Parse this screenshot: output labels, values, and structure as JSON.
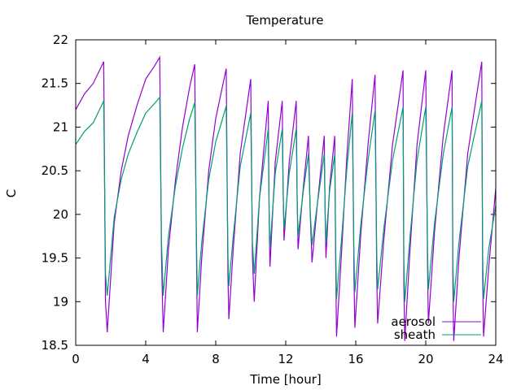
{
  "chart_data": {
    "type": "line",
    "title": "Temperature",
    "xlabel": "Time [hour]",
    "ylabel": "C",
    "xlim": [
      0,
      24
    ],
    "ylim": [
      18.5,
      22
    ],
    "xticks": [
      0,
      4,
      8,
      12,
      16,
      20,
      24
    ],
    "xtick_labels": [
      "0",
      "4",
      "8",
      "12",
      "16",
      "20",
      "24"
    ],
    "yticks": [
      18.5,
      19,
      19.5,
      20,
      20.5,
      21,
      21.5,
      22
    ],
    "ytick_labels": [
      "18.5",
      "19",
      "19.5",
      "20",
      "20.5",
      "21",
      "21.5",
      "22"
    ],
    "grid": false,
    "legend_position": "bottom-right",
    "x": [
      0,
      0.5,
      1.0,
      1.6,
      1.7,
      1.8,
      2.2,
      2.6,
      3.0,
      3.5,
      4.0,
      4.5,
      4.8,
      4.9,
      5.0,
      5.3,
      5.7,
      6.1,
      6.5,
      6.8,
      6.9,
      6.95,
      7.2,
      7.6,
      8.0,
      8.6,
      8.7,
      8.75,
      9.0,
      9.4,
      10.0,
      10.1,
      10.2,
      10.5,
      11.0,
      11.05,
      11.1,
      11.4,
      11.8,
      11.85,
      11.9,
      12.2,
      12.6,
      12.65,
      12.7,
      13.0,
      13.3,
      13.4,
      13.5,
      13.8,
      14.2,
      14.25,
      14.3,
      14.5,
      14.8,
      14.85,
      14.9,
      15.2,
      15.5,
      15.8,
      15.9,
      15.95,
      16.3,
      16.7,
      17.1,
      17.2,
      17.25,
      17.6,
      18.1,
      18.7,
      18.75,
      18.8,
      19.1,
      19.5,
      20.0,
      20.1,
      20.15,
      20.5,
      21.0,
      21.5,
      21.55,
      21.6,
      21.9,
      22.4,
      23.2,
      23.25,
      23.3,
      23.6,
      24
    ],
    "series": [
      {
        "name": "aerosol",
        "color": "#9400d3",
        "values": [
          21.2,
          21.38,
          21.5,
          21.75,
          19.0,
          18.65,
          19.9,
          20.5,
          20.9,
          21.25,
          21.55,
          21.7,
          21.8,
          19.5,
          18.65,
          19.6,
          20.4,
          21.0,
          21.45,
          21.72,
          19.5,
          18.65,
          19.5,
          20.5,
          21.1,
          21.67,
          19.3,
          18.8,
          19.6,
          20.7,
          21.55,
          19.5,
          19.0,
          20.2,
          21.3,
          20.0,
          19.4,
          20.6,
          21.3,
          20.3,
          19.7,
          20.6,
          21.3,
          20.2,
          19.6,
          20.3,
          20.9,
          20.0,
          19.45,
          20.1,
          20.9,
          20.0,
          19.5,
          20.3,
          20.9,
          19.5,
          18.6,
          19.6,
          20.7,
          21.55,
          19.3,
          18.7,
          19.8,
          20.8,
          21.6,
          19.3,
          18.75,
          19.7,
          20.8,
          21.65,
          19.2,
          18.55,
          19.6,
          20.8,
          21.65,
          19.4,
          18.75,
          19.8,
          20.9,
          21.65,
          19.2,
          18.55,
          19.5,
          20.7,
          21.75,
          19.3,
          18.6,
          19.4,
          20.3
        ]
      },
      {
        "name": "sheath",
        "color": "#009e73",
        "values": [
          20.8,
          20.95,
          21.05,
          21.3,
          19.32,
          19.07,
          19.97,
          20.4,
          20.69,
          20.94,
          21.16,
          21.27,
          21.34,
          19.68,
          19.07,
          19.75,
          20.33,
          20.76,
          21.09,
          21.28,
          19.68,
          19.07,
          19.68,
          20.4,
          20.83,
          21.24,
          19.54,
          19.18,
          19.75,
          20.55,
          21.16,
          19.68,
          19.32,
          20.19,
          20.98,
          20.04,
          19.61,
          20.47,
          20.98,
          20.26,
          19.83,
          20.47,
          20.98,
          20.19,
          19.75,
          20.26,
          20.69,
          20.04,
          19.65,
          20.11,
          20.69,
          20.04,
          19.68,
          20.26,
          20.69,
          19.68,
          19.03,
          19.75,
          20.55,
          21.16,
          19.54,
          19.11,
          19.9,
          20.62,
          21.19,
          19.54,
          19.14,
          19.83,
          20.62,
          21.23,
          19.47,
          19.0,
          19.75,
          20.62,
          21.23,
          19.61,
          19.14,
          19.9,
          20.69,
          21.23,
          19.47,
          19.0,
          19.68,
          20.55,
          21.3,
          19.54,
          19.03,
          19.61,
          20.1
        ]
      }
    ]
  }
}
